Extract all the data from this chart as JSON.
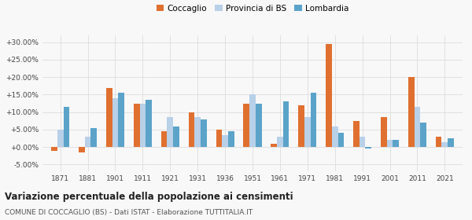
{
  "years": [
    1871,
    1881,
    1901,
    1911,
    1921,
    1931,
    1936,
    1951,
    1961,
    1971,
    1981,
    1991,
    2001,
    2011,
    2021
  ],
  "coccaglio": [
    -1.0,
    -1.5,
    17.0,
    12.5,
    4.5,
    10.0,
    5.0,
    12.5,
    1.0,
    12.0,
    29.5,
    7.5,
    8.5,
    20.0,
    3.0
  ],
  "provincia_bs": [
    5.0,
    3.0,
    14.0,
    12.5,
    8.5,
    8.5,
    3.5,
    15.0,
    3.0,
    8.5,
    6.0,
    3.0,
    2.0,
    11.5,
    1.5
  ],
  "lombardia": [
    11.5,
    5.5,
    15.5,
    13.5,
    6.0,
    8.0,
    4.5,
    12.5,
    13.0,
    15.5,
    4.0,
    -0.5,
    2.0,
    7.0,
    2.5
  ],
  "color_coccaglio": "#e07030",
  "color_provincia": "#b8d0e8",
  "color_lombardia": "#5ba3c9",
  "title": "Variazione percentuale della popolazione ai censimenti",
  "subtitle": "COMUNE DI COCCAGLIO (BS) - Dati ISTAT - Elaborazione TUTTITALIA.IT",
  "legend_labels": [
    "Coccaglio",
    "Provincia di BS",
    "Lombardia"
  ],
  "ylim": [
    -7.0,
    32.0
  ],
  "yticks": [
    -5,
    0,
    5,
    10,
    15,
    20,
    25,
    30
  ],
  "background_color": "#f8f8f8",
  "grid_color": "#dddddd"
}
